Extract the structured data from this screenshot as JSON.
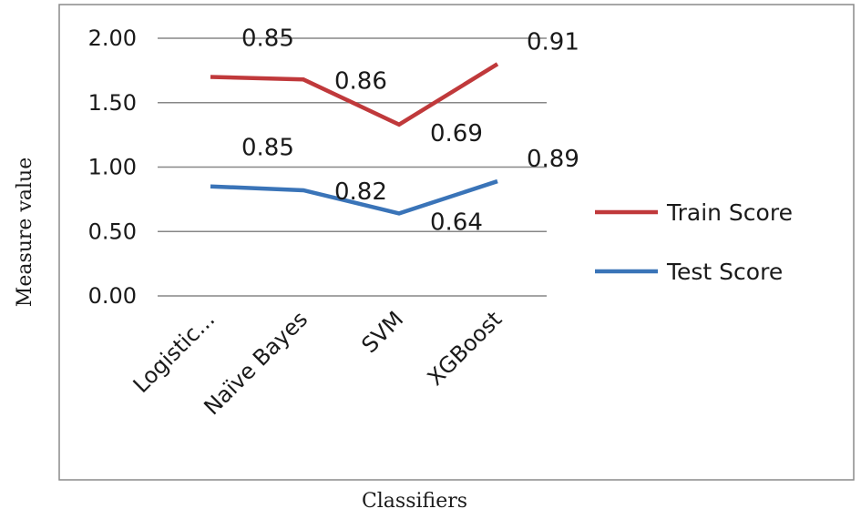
{
  "chart_data": {
    "type": "line",
    "title": "",
    "xlabel": "Classifiers",
    "ylabel": "Measure value",
    "categories": [
      "Logistic...",
      "Naïve Bayes",
      "SVM",
      "XGBoost"
    ],
    "ylim": [
      0,
      2
    ],
    "yticks": [
      "0.00",
      "0.50",
      "1.00",
      "1.50",
      "2.00"
    ],
    "grid": true,
    "stacked": true,
    "legend_position": "right",
    "series": [
      {
        "name": "Train Score",
        "color": "#c0393b",
        "values": [
          0.85,
          0.86,
          0.69,
          0.91
        ],
        "labels": [
          "0.85",
          "0.86",
          "0.69",
          "0.91"
        ]
      },
      {
        "name": "Test Score",
        "color": "#3a74b8",
        "values": [
          0.85,
          0.82,
          0.64,
          0.89
        ],
        "labels": [
          "0.85",
          "0.82",
          "0.64",
          "0.89"
        ]
      }
    ]
  }
}
